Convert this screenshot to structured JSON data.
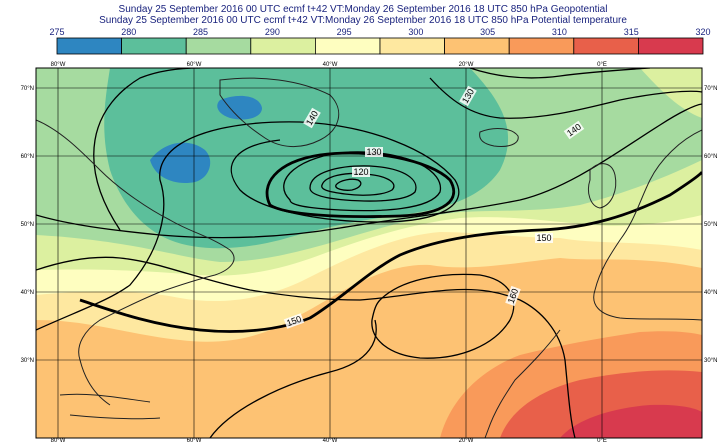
{
  "title": {
    "line1": "Sunday 25 September 2016 00 UTC ecmf t+42 VT:Monday 26 September 2016 18 UTC 850 hPa  Geopotential",
    "line2": "Sunday 25 September 2016 00 UTC ecmf t+42 VT:Monday 26 September 2016 18 UTC 850 hPa  Potential temperature"
  },
  "colorbar": {
    "ticks": [
      "275",
      "280",
      "285",
      "290",
      "295",
      "300",
      "305",
      "310",
      "315",
      "320"
    ],
    "colors": [
      "#2e86c1",
      "#5cbf9b",
      "#a6dba0",
      "#dcf0a0",
      "#fefec0",
      "#fee8a0",
      "#fdc273",
      "#f99a5a",
      "#e8604a",
      "#d83a4e"
    ]
  },
  "map": {
    "lon_labels": [
      "80°W",
      "60°W",
      "40°W",
      "20°W",
      "0°E"
    ],
    "lat_labels": [
      "70°N",
      "60°N",
      "50°N",
      "40°N",
      "30°N"
    ],
    "contour_labels": [
      "120",
      "130",
      "140",
      "130",
      "140",
      "150",
      "150",
      "160"
    ]
  }
}
